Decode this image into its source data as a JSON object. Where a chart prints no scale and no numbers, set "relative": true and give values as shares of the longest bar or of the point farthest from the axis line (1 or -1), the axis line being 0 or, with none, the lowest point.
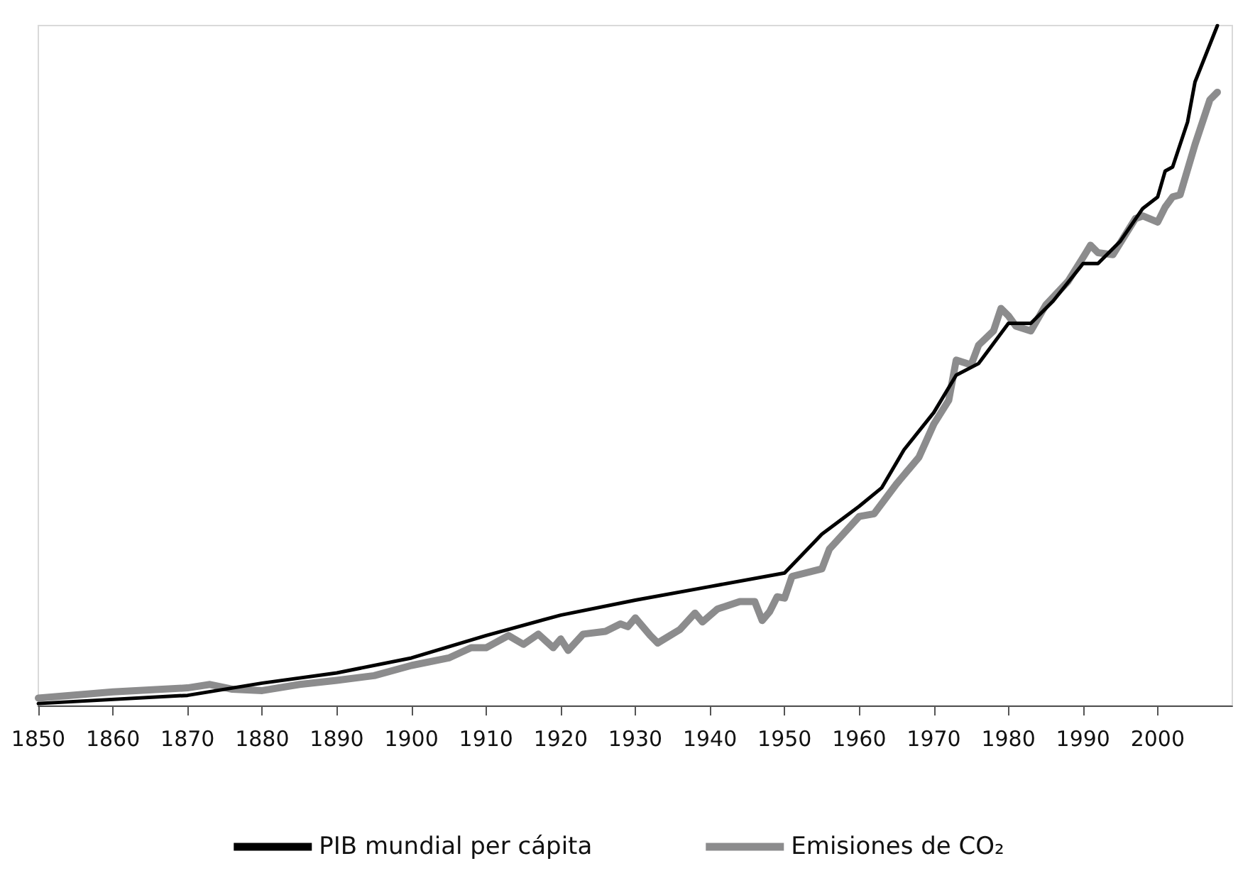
{
  "chart_data": {
    "type": "line",
    "relative": true,
    "xlim": [
      1850,
      2010
    ],
    "xticks": [
      1850,
      1860,
      1870,
      1880,
      1890,
      1900,
      1910,
      1920,
      1930,
      1940,
      1950,
      1960,
      1970,
      1980,
      1990,
      2000
    ],
    "legend": "bottom",
    "marker": "none",
    "line_style": "solid",
    "grid": false,
    "series": [
      {
        "name": "PIB mundial per cápita",
        "color": "#000000",
        "x": [
          1850,
          1870,
          1880,
          1890,
          1900,
          1910,
          1920,
          1930,
          1940,
          1950,
          1955,
          1960,
          1963,
          1966,
          1970,
          1973,
          1976,
          1980,
          1983,
          1986,
          1990,
          1992,
          1995,
          1998,
          2000,
          2001,
          2002,
          2004,
          2005,
          2008
        ],
        "values": [
          0.003,
          0.015,
          0.033,
          0.048,
          0.07,
          0.103,
          0.133,
          0.155,
          0.175,
          0.195,
          0.252,
          0.293,
          0.32,
          0.376,
          0.431,
          0.486,
          0.503,
          0.562,
          0.562,
          0.595,
          0.65,
          0.65,
          0.683,
          0.731,
          0.748,
          0.786,
          0.792,
          0.858,
          0.917,
          1
        ]
      },
      {
        "name": "Emisiones de CO₂",
        "color": "#8c8c8d",
        "x": [
          1850,
          1860,
          1870,
          1873,
          1876,
          1880,
          1885,
          1890,
          1895,
          1900,
          1905,
          1908,
          1910,
          1913,
          1915,
          1917,
          1919,
          1920,
          1921,
          1923,
          1926,
          1928,
          1929,
          1930,
          1932,
          1933,
          1936,
          1938,
          1939,
          1941,
          1944,
          1946,
          1947,
          1948,
          1949,
          1950,
          1951,
          1955,
          1956,
          1960,
          1962,
          1965,
          1968,
          1970,
          1972,
          1973,
          1975,
          1976,
          1978,
          1979,
          1980,
          1981,
          1983,
          1985,
          1988,
          1990,
          1991,
          1992,
          1994,
          1997,
          1998,
          2000,
          2001,
          2002,
          2003,
          2005,
          2007,
          2008
        ],
        "values": [
          0.011,
          0.02,
          0.026,
          0.031,
          0.024,
          0.022,
          0.031,
          0.037,
          0.044,
          0.059,
          0.07,
          0.085,
          0.085,
          0.103,
          0.09,
          0.105,
          0.085,
          0.098,
          0.081,
          0.105,
          0.109,
          0.12,
          0.116,
          0.129,
          0.103,
          0.092,
          0.112,
          0.136,
          0.123,
          0.142,
          0.153,
          0.153,
          0.125,
          0.138,
          0.16,
          0.158,
          0.19,
          0.201,
          0.23,
          0.278,
          0.282,
          0.326,
          0.365,
          0.414,
          0.449,
          0.508,
          0.501,
          0.53,
          0.551,
          0.584,
          0.573,
          0.558,
          0.551,
          0.589,
          0.624,
          0.659,
          0.677,
          0.666,
          0.663,
          0.716,
          0.72,
          0.711,
          0.733,
          0.748,
          0.751,
          0.825,
          0.891,
          0.902
        ]
      }
    ]
  }
}
